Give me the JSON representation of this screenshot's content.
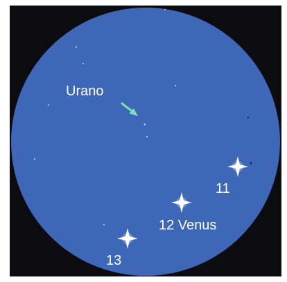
{
  "labels": [
    "Urano",
    "11",
    "12 Venus",
    "13"
  ]
}
